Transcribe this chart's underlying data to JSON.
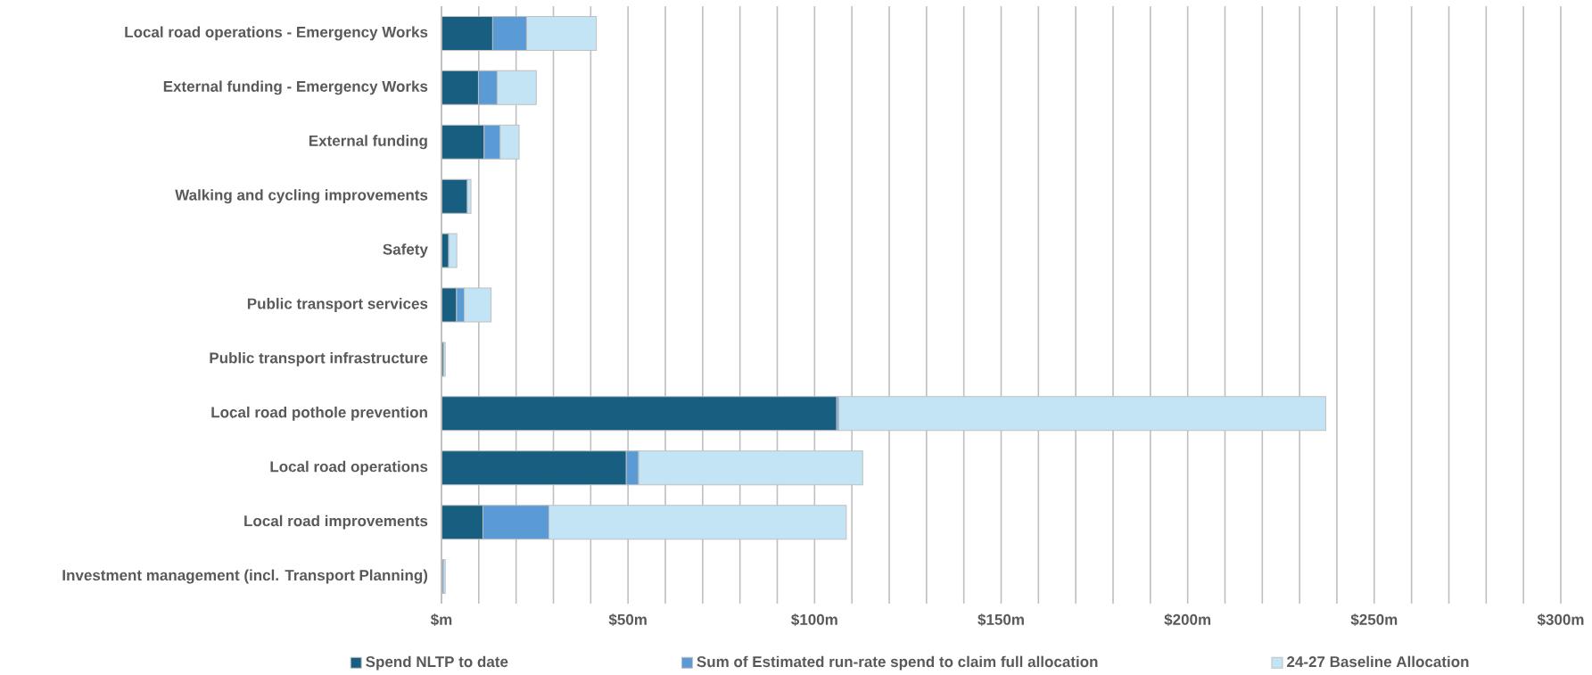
{
  "chart_data": {
    "type": "bar",
    "orientation": "horizontal",
    "stacked": true,
    "categories": [
      "Local road operations - Emergency Works",
      "External funding - Emergency Works",
      "External funding",
      "Walking and cycling improvements",
      "Safety",
      "Public transport services",
      "Public transport infrastructure",
      "Local road pothole prevention",
      "Local road operations",
      "Local road improvements",
      "Investment management (incl. Transport Planning)"
    ],
    "series": [
      {
        "name": "Spend NLTP to date",
        "color": "#175e81",
        "values": [
          13.7,
          9.9,
          11.4,
          6.9,
          1.9,
          4.0,
          0.5,
          105.9,
          49.5,
          11.1,
          null
        ]
      },
      {
        "name": "Sum of Estimated run-rate spend to claim full allocation",
        "color": "#5b9bd5",
        "values": [
          9.1,
          5.0,
          4.3,
          0,
          0,
          2.1,
          0,
          0.5,
          3.3,
          17.7,
          0.5
        ]
      },
      {
        "name": "24-27 Baseline Allocation",
        "color": "#c2e4f4",
        "values": [
          18.7,
          10.5,
          5.1,
          1.0,
          2.2,
          7.2,
          0.5,
          130.6,
          60.1,
          79.7,
          0.5
        ]
      }
    ],
    "xlim": [
      0,
      300
    ],
    "xticks": [
      {
        "value": 0,
        "label": "$m"
      },
      {
        "value": 10,
        "label": null
      },
      {
        "value": 20,
        "label": null
      },
      {
        "value": 30,
        "label": null
      },
      {
        "value": 40,
        "label": null
      },
      {
        "value": 50,
        "label": "$50m"
      },
      {
        "value": 60,
        "label": null
      },
      {
        "value": 70,
        "label": null
      },
      {
        "value": 80,
        "label": null
      },
      {
        "value": 90,
        "label": null
      },
      {
        "value": 100,
        "label": "$100m"
      },
      {
        "value": 110,
        "label": null
      },
      {
        "value": 120,
        "label": null
      },
      {
        "value": 130,
        "label": null
      },
      {
        "value": 140,
        "label": null
      },
      {
        "value": 150,
        "label": "$150m"
      },
      {
        "value": 160,
        "label": null
      },
      {
        "value": 170,
        "label": null
      },
      {
        "value": 180,
        "label": null
      },
      {
        "value": 190,
        "label": null
      },
      {
        "value": 200,
        "label": "$200m"
      },
      {
        "value": 210,
        "label": null
      },
      {
        "value": 220,
        "label": null
      },
      {
        "value": 230,
        "label": null
      },
      {
        "value": 240,
        "label": null
      },
      {
        "value": 250,
        "label": "$250m"
      },
      {
        "value": 260,
        "label": null
      },
      {
        "value": 270,
        "label": null
      },
      {
        "value": 280,
        "label": null
      },
      {
        "value": 290,
        "label": null
      },
      {
        "value": 300,
        "label": "$300m"
      }
    ],
    "grid": "x",
    "legend": "bottom"
  }
}
